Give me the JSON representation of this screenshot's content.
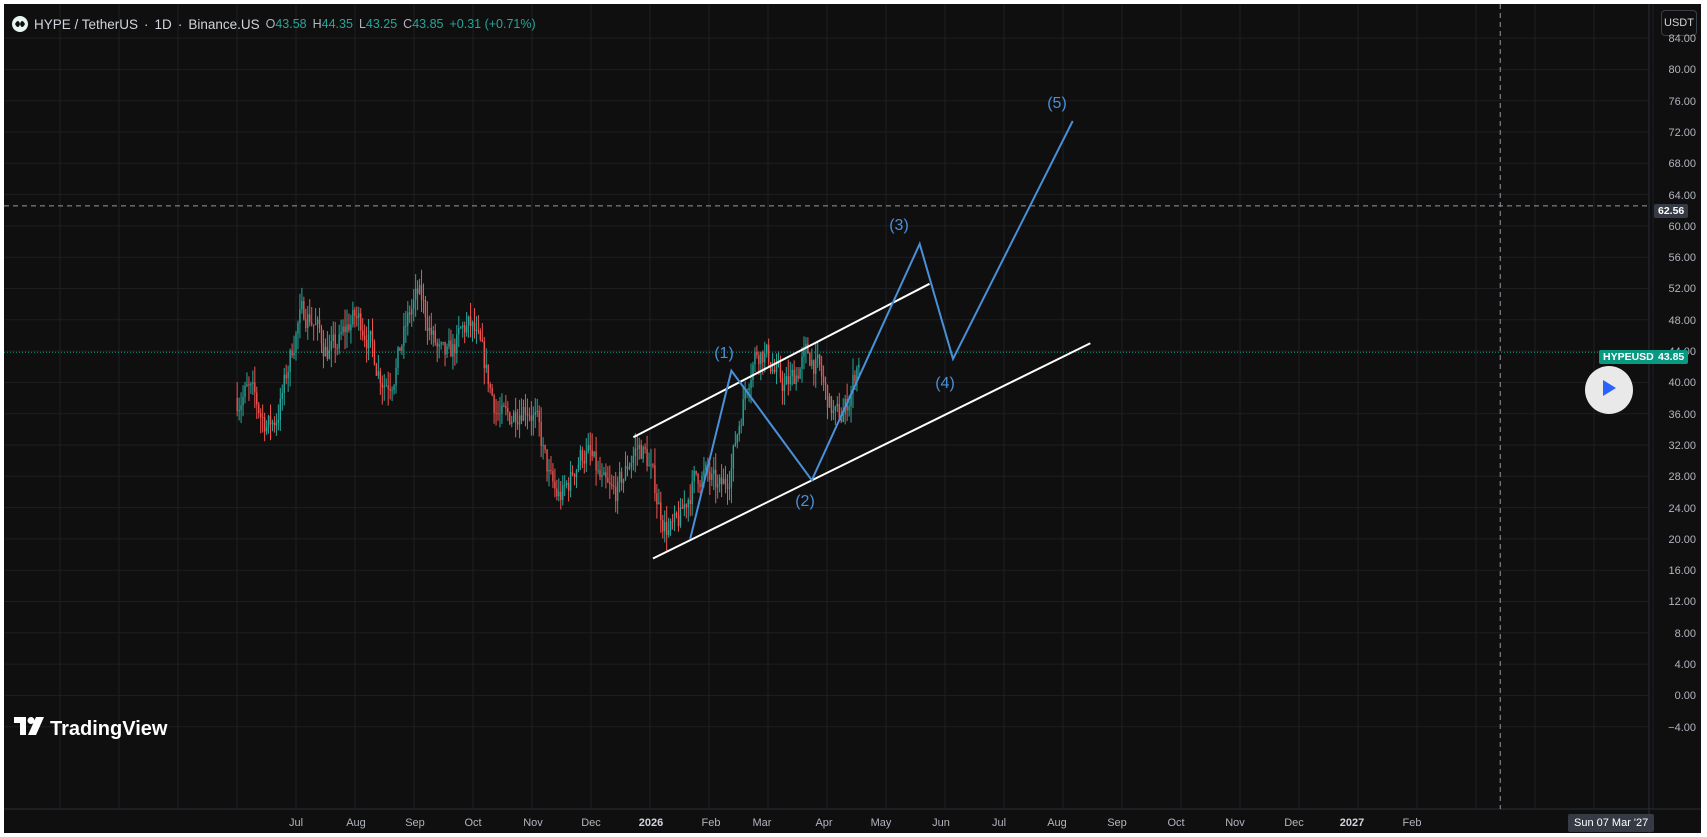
{
  "header": {
    "symbol": "HYPE / TetherUS",
    "interval": "1D",
    "exchange": "Binance.US",
    "separator": "·",
    "ohlc": [
      {
        "key": "O",
        "value": "43.58"
      },
      {
        "key": "H",
        "value": "44.35"
      },
      {
        "key": "L",
        "value": "43.25"
      },
      {
        "key": "C",
        "value": "43.85"
      }
    ],
    "change": "+0.31 (+0.71%)"
  },
  "currency_button": "USDT",
  "price_axis": {
    "labels": [
      "84.00",
      "80.00",
      "76.00",
      "72.00",
      "68.00",
      "64.00",
      "60.00",
      "56.00",
      "52.00",
      "48.00",
      "44.00",
      "40.00",
      "36.00",
      "32.00",
      "28.00",
      "24.00",
      "20.00",
      "16.00",
      "12.00",
      "8.00",
      "4.00",
      "0.00",
      "−4.00"
    ]
  },
  "time_axis": {
    "labels": [
      "Jul",
      "Aug",
      "Sep",
      "Oct",
      "Nov",
      "Dec",
      "2026",
      "Feb",
      "Mar",
      "Apr",
      "May",
      "Jun",
      "Jul",
      "Aug",
      "Sep",
      "Oct",
      "Nov",
      "Dec",
      "2027",
      "Feb"
    ]
  },
  "crosshair": {
    "price": "62.56",
    "date": "Sun 07 Mar '27"
  },
  "last_price": {
    "symbol": "HYPEUSDT",
    "value": "43.85"
  },
  "wave_labels": [
    "(1)",
    "(2)",
    "(3)",
    "(4)",
    "(5)"
  ],
  "branding": {
    "logo_text": "TradingView"
  },
  "colors": {
    "background": "#0f0f0f",
    "grid": "#1e1f22",
    "up_candle": "#26a69a",
    "down_candle": "#ef5350",
    "wave_line": "#4a90d9",
    "channel_line": "#ffffff",
    "last_price_line": "#089981",
    "axis_text": "#b2b5be"
  },
  "chart_data": {
    "type": "candlestick",
    "instrument": "HYPE / TetherUS",
    "timeframe": "1D",
    "y_unit": "USDT",
    "ylim": [
      -6,
      86
    ],
    "y_ticks": [
      84,
      80,
      76,
      72,
      68,
      64,
      60,
      56,
      52,
      48,
      44,
      40,
      36,
      32,
      28,
      24,
      20,
      16,
      12,
      8,
      4,
      0,
      -4
    ],
    "grid": true,
    "last_price": 43.85,
    "crosshair_price": 62.56,
    "crosshair_date": "2027-03-07",
    "monthly_closes_approx": [
      {
        "date": "2025-06-01",
        "close": 38.0
      },
      {
        "date": "2025-07-01",
        "close": 44.0
      },
      {
        "date": "2025-08-01",
        "close": 43.0
      },
      {
        "date": "2025-09-01",
        "close": 51.0
      },
      {
        "date": "2025-10-01",
        "close": 38.0
      },
      {
        "date": "2025-11-01",
        "close": 36.0
      },
      {
        "date": "2025-12-01",
        "close": 25.0
      },
      {
        "date": "2026-01-01",
        "close": 26.0
      },
      {
        "date": "2026-02-01",
        "close": 30.0
      },
      {
        "date": "2026-03-01",
        "close": 40.0
      },
      {
        "date": "2026-04-15",
        "close": 43.85
      }
    ],
    "elliott_wave_projection": [
      {
        "label": "",
        "date": "2026-01-18",
        "price": 20.0
      },
      {
        "label": "(1)",
        "date": "2026-02-08",
        "price": 41.5
      },
      {
        "label": "(2)",
        "date": "2026-03-21",
        "price": 27.5
      },
      {
        "label": "(3)",
        "date": "2026-05-15",
        "price": 57.7
      },
      {
        "label": "(4)",
        "date": "2026-06-01",
        "price": 43.0
      },
      {
        "label": "(5)",
        "date": "2026-08-01",
        "price": 73.4
      }
    ],
    "channel_lines": [
      {
        "name": "upper",
        "start": {
          "date": "2025-12-20",
          "price": 33.0
        },
        "end": {
          "date": "2026-05-20",
          "price": 52.6
        }
      },
      {
        "name": "lower",
        "start": {
          "date": "2025-12-30",
          "price": 17.5
        },
        "end": {
          "date": "2026-08-10",
          "price": 45.0
        }
      }
    ]
  }
}
